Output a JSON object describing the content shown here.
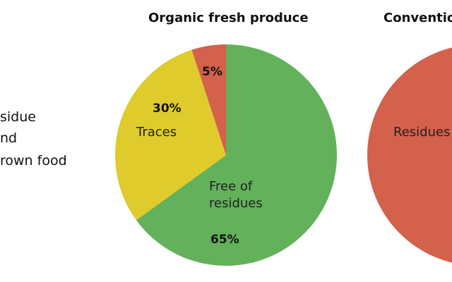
{
  "intro": [
    "sidue",
    "nd",
    "rown food"
  ],
  "chart_data": [
    {
      "type": "pie",
      "title": "Organic fresh produce",
      "categories": [
        "Free of residues",
        "Traces",
        null
      ],
      "values": [
        65,
        30,
        5
      ],
      "value_labels": [
        "65%",
        "30%",
        "5%"
      ],
      "colors": [
        "#63b15b",
        "#dfcb2b",
        "#d4614b"
      ]
    },
    {
      "type": "pie",
      "title": "Conventio",
      "categories": [
        "Residues"
      ],
      "values": [
        100
      ],
      "colors": [
        "#d4614b"
      ]
    }
  ]
}
